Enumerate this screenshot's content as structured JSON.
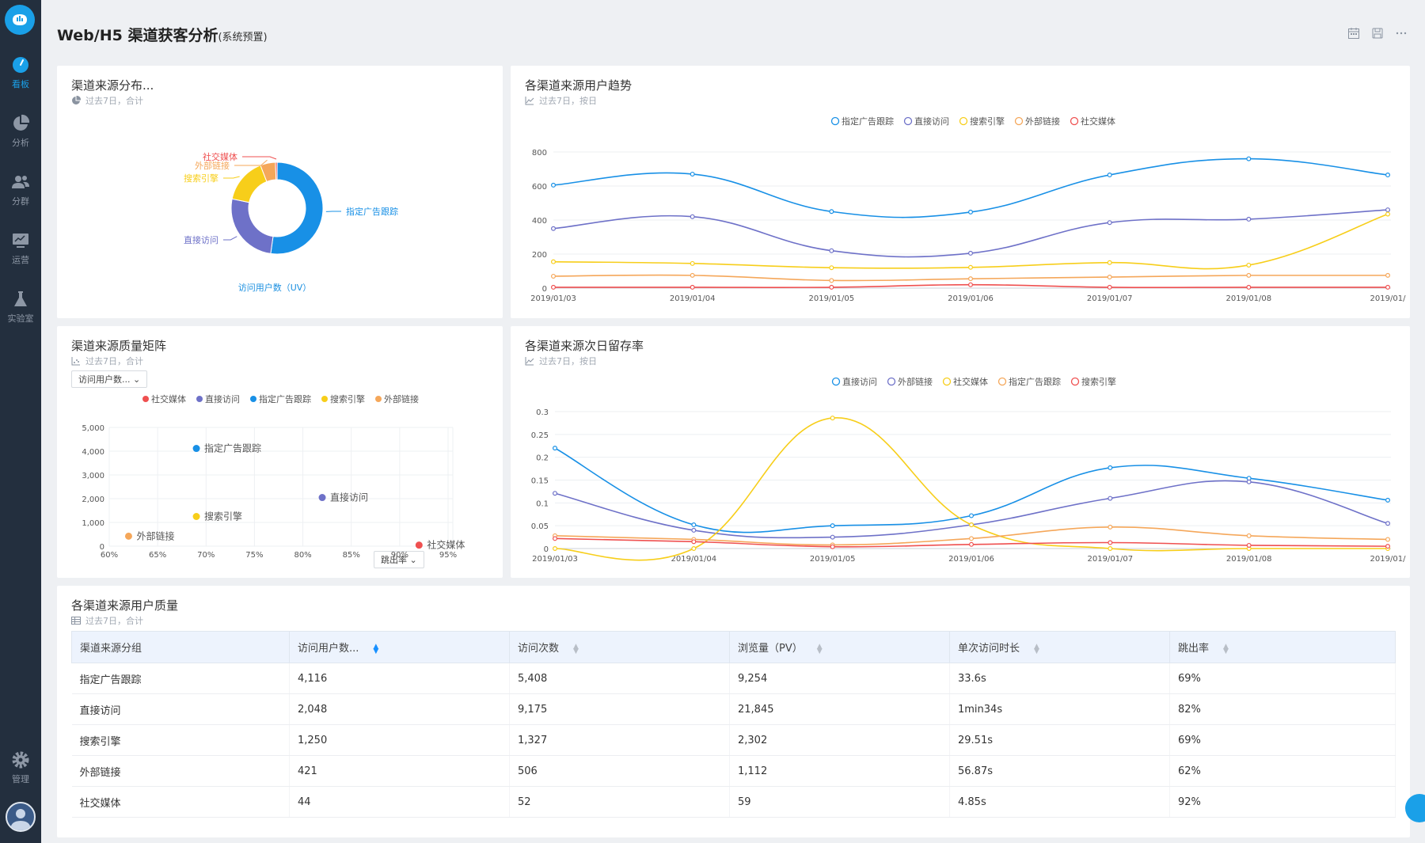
{
  "sidebar": {
    "items": [
      {
        "label": "看板",
        "icon": "dashboard-icon",
        "active": true
      },
      {
        "label": "分析",
        "icon": "pie-chart-icon"
      },
      {
        "label": "分群",
        "icon": "users-icon"
      },
      {
        "label": "运营",
        "icon": "monitor-icon"
      },
      {
        "label": "实验室",
        "icon": "flask-icon"
      }
    ],
    "bottom": {
      "label": "管理",
      "icon": "gear-icon"
    }
  },
  "header": {
    "title": "Web/H5 渠道获客分析",
    "title_suffix": "(系统预置)",
    "icons": [
      "calendar-icon",
      "save-icon",
      "more-icon"
    ]
  },
  "colors": {
    "blue": "#1890e6",
    "purple": "#6e71c8",
    "yellow": "#f7ce1a",
    "orange": "#f5a75a",
    "red": "#ef5050",
    "accent": "#1aa0e8"
  },
  "cards": {
    "donut": {
      "title": "渠道来源分布...",
      "subtitle": "过去7日，合计",
      "metric": "访问用户数（UV）",
      "chart_data": {
        "type": "pie",
        "categories": [
          "指定广告跟踪",
          "直接访问",
          "搜索引擎",
          "外部链接",
          "社交媒体"
        ],
        "values": [
          4116,
          2048,
          1250,
          421,
          44
        ]
      }
    },
    "trend": {
      "title": "各渠道来源用户趋势",
      "subtitle": "过去7日，按日",
      "chart_data": {
        "type": "line",
        "x": [
          "2019/01/03",
          "2019/01/04",
          "2019/01/05",
          "2019/01/06",
          "2019/01/07",
          "2019/01/08",
          "2019/01/"
        ],
        "ylim": [
          0,
          800
        ],
        "yticks": [
          "0",
          "200",
          "400",
          "600",
          "800"
        ],
        "series": [
          {
            "name": "指定广告跟踪",
            "values": [
              605,
              670,
              450,
              447,
              665,
              760,
              665
            ]
          },
          {
            "name": "直接访问",
            "values": [
              350,
              420,
              220,
              205,
              385,
              405,
              460
            ]
          },
          {
            "name": "搜索引擎",
            "values": [
              155,
              145,
              120,
              122,
              150,
              135,
              435
            ]
          },
          {
            "name": "外部链接",
            "values": [
              70,
              75,
              45,
              55,
              65,
              75,
              75
            ]
          },
          {
            "name": "社交媒体",
            "values": [
              5,
              5,
              5,
              20,
              5,
              5,
              5
            ]
          }
        ]
      }
    },
    "matrix": {
      "title": "渠道来源质量矩阵",
      "subtitle": "过去7日，合计",
      "y_select": "访问用户数...",
      "x_select": "跳出率",
      "chart_data": {
        "type": "scatter",
        "xlim": [
          60,
          95
        ],
        "ylim": [
          0,
          5000
        ],
        "xticks": [
          "60%",
          "65%",
          "70%",
          "75%",
          "80%",
          "85%",
          "90%",
          "95%"
        ],
        "yticks": [
          "0",
          "1,000",
          "2,000",
          "3,000",
          "4,000",
          "5,000"
        ],
        "legend": [
          "社交媒体",
          "直接访问",
          "指定广告跟踪",
          "搜索引擎",
          "外部链接"
        ],
        "points": [
          {
            "name": "指定广告跟踪",
            "x": 69,
            "y": 4116
          },
          {
            "name": "直接访问",
            "x": 82,
            "y": 2048
          },
          {
            "name": "搜索引擎",
            "x": 69,
            "y": 1250
          },
          {
            "name": "外部链接",
            "x": 62,
            "y": 421
          },
          {
            "name": "社交媒体",
            "x": 92,
            "y": 44
          }
        ]
      }
    },
    "retention": {
      "title": "各渠道来源次日留存率",
      "subtitle": "过去7日，按日",
      "chart_data": {
        "type": "line",
        "x": [
          "2019/01/03",
          "2019/01/04",
          "2019/01/05",
          "2019/01/06",
          "2019/01/07",
          "2019/01/08",
          "2019/01/"
        ],
        "ylim": [
          0,
          0.3
        ],
        "yticks": [
          "0",
          "0.05",
          "0.1",
          "0.15",
          "0.2",
          "0.25",
          "0.3"
        ],
        "series": [
          {
            "name": "直接访问",
            "values": [
              0.22,
              0.052,
              0.05,
              0.072,
              0.177,
              0.154,
              0.106
            ]
          },
          {
            "name": "外部链接",
            "values": [
              0.121,
              0.04,
              0.025,
              0.052,
              0.11,
              0.146,
              0.055
            ]
          },
          {
            "name": "社交媒体",
            "values": [
              0.0,
              0.0,
              0.286,
              0.052,
              0.0,
              0.0,
              0.0
            ]
          },
          {
            "name": "指定广告跟踪",
            "values": [
              0.028,
              0.02,
              0.008,
              0.022,
              0.047,
              0.028,
              0.02
            ]
          },
          {
            "name": "搜索引擎",
            "values": [
              0.022,
              0.015,
              0.004,
              0.009,
              0.013,
              0.007,
              0.005
            ]
          }
        ]
      }
    },
    "table": {
      "title": "各渠道来源用户质量",
      "subtitle": "过去7日，合计",
      "columns": [
        "渠道来源分组",
        "访问用户数...",
        "访问次数",
        "浏览量（PV）",
        "单次访问时长",
        "跳出率"
      ],
      "rows": [
        [
          "指定广告跟踪",
          "4,116",
          "5,408",
          "9,254",
          "33.6s",
          "69%"
        ],
        [
          "直接访问",
          "2,048",
          "9,175",
          "21,845",
          "1min34s",
          "82%"
        ],
        [
          "搜索引擎",
          "1,250",
          "1,327",
          "2,302",
          "29.51s",
          "69%"
        ],
        [
          "外部链接",
          "421",
          "506",
          "1,112",
          "56.87s",
          "62%"
        ],
        [
          "社交媒体",
          "44",
          "52",
          "59",
          "4.85s",
          "92%"
        ]
      ]
    }
  }
}
